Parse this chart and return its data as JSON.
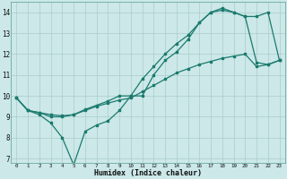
{
  "xlabel": "Humidex (Indice chaleur)",
  "background_color": "#cce8e8",
  "grid_color": "#aacccc",
  "line_color": "#1a7a6e",
  "xlim": [
    -0.5,
    23.5
  ],
  "ylim": [
    6.8,
    14.5
  ],
  "xticks": [
    0,
    1,
    2,
    3,
    4,
    5,
    6,
    7,
    8,
    9,
    10,
    11,
    12,
    13,
    14,
    15,
    16,
    17,
    18,
    19,
    20,
    21,
    22,
    23
  ],
  "yticks": [
    7,
    8,
    9,
    10,
    11,
    12,
    13,
    14
  ],
  "line1_x": [
    0,
    1,
    2,
    3,
    4,
    5,
    6,
    7,
    8,
    9,
    10,
    11,
    12,
    13,
    14,
    15,
    16,
    17,
    18,
    19,
    20,
    21,
    22,
    23
  ],
  "line1_y": [
    9.9,
    9.3,
    9.1,
    8.7,
    8.0,
    6.7,
    8.3,
    8.6,
    8.8,
    9.3,
    10.0,
    10.0,
    11.0,
    11.7,
    12.1,
    12.7,
    13.5,
    14.0,
    14.1,
    14.0,
    13.8,
    13.8,
    14.0,
    11.7
  ],
  "line2_x": [
    0,
    1,
    2,
    3,
    4,
    5,
    6,
    7,
    8,
    9,
    10,
    11,
    12,
    13,
    14,
    15,
    16,
    17,
    18,
    19,
    20,
    21,
    22,
    23
  ],
  "line2_y": [
    9.9,
    9.3,
    9.2,
    9.0,
    9.0,
    9.1,
    9.35,
    9.55,
    9.75,
    10.0,
    10.0,
    10.8,
    11.4,
    12.0,
    12.5,
    12.9,
    13.5,
    14.0,
    14.2,
    14.0,
    13.8,
    11.6,
    11.5,
    11.7
  ],
  "line3_x": [
    0,
    1,
    2,
    3,
    4,
    5,
    6,
    7,
    8,
    9,
    10,
    11,
    12,
    13,
    14,
    15,
    16,
    17,
    18,
    19,
    20,
    21,
    22,
    23
  ],
  "line3_y": [
    9.9,
    9.3,
    9.2,
    9.1,
    9.05,
    9.1,
    9.3,
    9.5,
    9.65,
    9.8,
    9.9,
    10.2,
    10.5,
    10.8,
    11.1,
    11.3,
    11.5,
    11.65,
    11.8,
    11.9,
    12.0,
    11.4,
    11.5,
    11.7
  ]
}
